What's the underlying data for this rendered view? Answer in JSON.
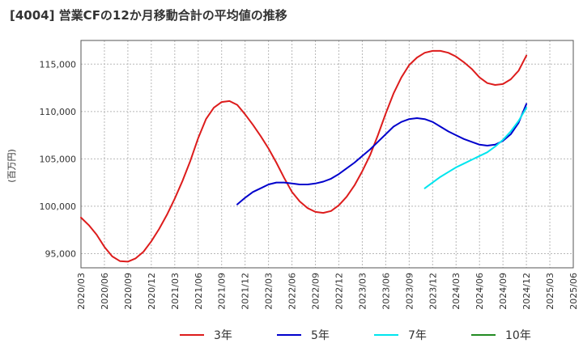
{
  "title": "[4004]  営業CFの12か月移動合計の平均値の推移",
  "chart_data": {
    "type": "line",
    "ylabel": "(百万円)",
    "ylim": [
      93500,
      117500
    ],
    "yticks": [
      95000,
      100000,
      105000,
      110000,
      115000
    ],
    "ytick_labels": [
      "95,000",
      "100,000",
      "105,000",
      "110,000",
      "115,000"
    ],
    "xticks": [
      "2020/03",
      "2020/06",
      "2020/09",
      "2020/12",
      "2021/03",
      "2021/06",
      "2021/09",
      "2021/12",
      "2022/03",
      "2022/06",
      "2022/09",
      "2022/12",
      "2023/03",
      "2023/06",
      "2023/09",
      "2023/12",
      "2024/03",
      "2024/06",
      "2024/09",
      "2024/12",
      "2025/03",
      "2025/06"
    ],
    "grid": true,
    "legend_position": "bottom",
    "series": [
      {
        "name": "3年",
        "color": "#dd1c1c",
        "x": [
          "2020/03",
          "2020/04",
          "2020/05",
          "2020/06",
          "2020/07",
          "2020/08",
          "2020/09",
          "2020/10",
          "2020/11",
          "2020/12",
          "2021/01",
          "2021/02",
          "2021/03",
          "2021/04",
          "2021/05",
          "2021/06",
          "2021/07",
          "2021/08",
          "2021/09",
          "2021/10",
          "2021/11",
          "2021/12",
          "2022/01",
          "2022/02",
          "2022/03",
          "2022/04",
          "2022/05",
          "2022/06",
          "2022/07",
          "2022/08",
          "2022/09",
          "2022/10",
          "2022/11",
          "2022/12",
          "2023/01",
          "2023/02",
          "2023/03",
          "2023/04",
          "2023/05",
          "2023/06",
          "2023/07",
          "2023/08",
          "2023/09",
          "2023/10",
          "2023/11",
          "2023/12",
          "2024/01",
          "2024/02",
          "2024/03",
          "2024/04",
          "2024/05",
          "2024/06",
          "2024/07",
          "2024/08",
          "2024/09",
          "2024/10",
          "2024/11",
          "2024/12"
        ],
        "values": [
          98800,
          98000,
          97000,
          95700,
          94700,
          94200,
          94150,
          94500,
          95200,
          96300,
          97600,
          99100,
          100800,
          102700,
          104800,
          107200,
          109200,
          110400,
          111000,
          111100,
          110700,
          109700,
          108600,
          107400,
          106100,
          104600,
          103000,
          101500,
          100500,
          99800,
          99400,
          99300,
          99500,
          100100,
          101000,
          102200,
          103700,
          105400,
          107500,
          109800,
          111900,
          113600,
          114900,
          115700,
          116200,
          116400,
          116400,
          116200,
          115800,
          115200,
          114500,
          113600,
          113000,
          112800,
          112900,
          113400,
          114300,
          115900
        ]
      },
      {
        "name": "5年",
        "color": "#0000cc",
        "x": [
          "2021/11",
          "2021/12",
          "2022/01",
          "2022/02",
          "2022/03",
          "2022/04",
          "2022/05",
          "2022/06",
          "2022/07",
          "2022/08",
          "2022/09",
          "2022/10",
          "2022/11",
          "2022/12",
          "2023/01",
          "2023/02",
          "2023/03",
          "2023/04",
          "2023/05",
          "2023/06",
          "2023/07",
          "2023/08",
          "2023/09",
          "2023/10",
          "2023/11",
          "2023/12",
          "2024/01",
          "2024/02",
          "2024/03",
          "2024/04",
          "2024/05",
          "2024/06",
          "2024/07",
          "2024/08",
          "2024/09",
          "2024/10",
          "2024/11",
          "2024/12"
        ],
        "values": [
          100200,
          100900,
          101500,
          101900,
          102300,
          102500,
          102500,
          102400,
          102300,
          102300,
          102400,
          102600,
          102900,
          103400,
          104000,
          104600,
          105300,
          106000,
          106800,
          107600,
          108400,
          108900,
          109200,
          109300,
          109200,
          108900,
          108400,
          107900,
          107500,
          107100,
          106800,
          106500,
          106400,
          106500,
          106900,
          107600,
          108800,
          110800
        ]
      },
      {
        "name": "7年",
        "color": "#00e5ee",
        "x": [
          "2023/11",
          "2023/12",
          "2024/01",
          "2024/02",
          "2024/03",
          "2024/04",
          "2024/05",
          "2024/06",
          "2024/07",
          "2024/08",
          "2024/09",
          "2024/10",
          "2024/11",
          "2024/12"
        ],
        "values": [
          101900,
          102500,
          103100,
          103600,
          104100,
          104500,
          104900,
          105300,
          105700,
          106300,
          107000,
          107900,
          109000,
          110400
        ]
      },
      {
        "name": "10年",
        "color": "#228b22",
        "x": [],
        "values": []
      }
    ]
  }
}
